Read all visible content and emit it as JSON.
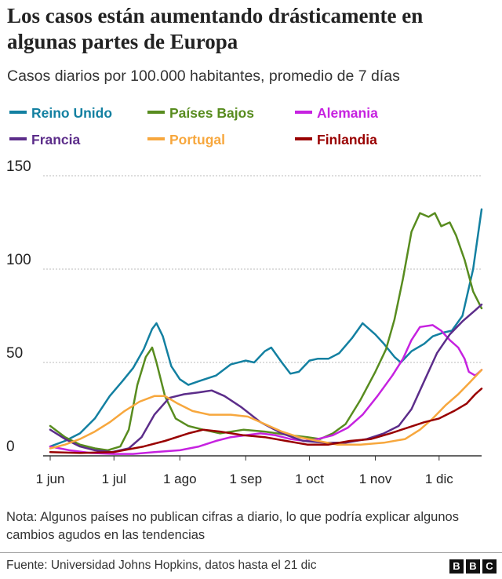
{
  "title": "Los casos están aumentando drásticamente en algunas partes de Europa",
  "subtitle": "Casos diarios por 100.000 habitantes, promedio de 7 días",
  "note": "Nota: Algunos países no publican cifras a diario, lo que podría explicar algunos cambios agudos en las tendencias",
  "source": "Fuente: Universidad Johns Hopkins, datos hasta el 21 dic",
  "logo": [
    "B",
    "B",
    "C"
  ],
  "chart_data": {
    "type": "line",
    "x_tick_labels": [
      "1 jun",
      "1 jul",
      "1 ago",
      "1 sep",
      "1 oct",
      "1 nov",
      "1 dic"
    ],
    "x_tick_dates": [
      "2021-06-01",
      "2021-07-01",
      "2021-08-01",
      "2021-09-01",
      "2021-10-01",
      "2021-11-01",
      "2021-12-01"
    ],
    "x_range": [
      "2021-06-01",
      "2021-12-21"
    ],
    "y_ticks": [
      "0",
      "50",
      "100",
      "150"
    ],
    "ylim": [
      0,
      150
    ],
    "grid": "horizontal dotted",
    "legend_position": "top",
    "series": [
      {
        "name": "Reino Unido",
        "color": "#1380a1",
        "points": [
          [
            "2021-06-01",
            5
          ],
          [
            "2021-06-08",
            8
          ],
          [
            "2021-06-15",
            12
          ],
          [
            "2021-06-22",
            20
          ],
          [
            "2021-06-29",
            32
          ],
          [
            "2021-07-05",
            40
          ],
          [
            "2021-07-10",
            47
          ],
          [
            "2021-07-15",
            57
          ],
          [
            "2021-07-19",
            68
          ],
          [
            "2021-07-21",
            71
          ],
          [
            "2021-07-24",
            64
          ],
          [
            "2021-07-28",
            48
          ],
          [
            "2021-08-01",
            41
          ],
          [
            "2021-08-05",
            38
          ],
          [
            "2021-08-10",
            40
          ],
          [
            "2021-08-18",
            43
          ],
          [
            "2021-08-25",
            49
          ],
          [
            "2021-09-01",
            51
          ],
          [
            "2021-09-05",
            50
          ],
          [
            "2021-09-10",
            56
          ],
          [
            "2021-09-13",
            58
          ],
          [
            "2021-09-18",
            50
          ],
          [
            "2021-09-22",
            44
          ],
          [
            "2021-09-26",
            45
          ],
          [
            "2021-10-01",
            51
          ],
          [
            "2021-10-05",
            52
          ],
          [
            "2021-10-10",
            52
          ],
          [
            "2021-10-15",
            55
          ],
          [
            "2021-10-21",
            63
          ],
          [
            "2021-10-26",
            71
          ],
          [
            "2021-11-01",
            65
          ],
          [
            "2021-11-05",
            60
          ],
          [
            "2021-11-10",
            53
          ],
          [
            "2021-11-13",
            50
          ],
          [
            "2021-11-18",
            56
          ],
          [
            "2021-11-24",
            60
          ],
          [
            "2021-11-28",
            64
          ],
          [
            "2021-12-03",
            66
          ],
          [
            "2021-12-07",
            67
          ],
          [
            "2021-12-12",
            75
          ],
          [
            "2021-12-17",
            100
          ],
          [
            "2021-12-21",
            132
          ]
        ]
      },
      {
        "name": "Países Bajos",
        "color": "#588c1f",
        "points": [
          [
            "2021-06-01",
            16
          ],
          [
            "2021-06-08",
            10
          ],
          [
            "2021-06-15",
            6
          ],
          [
            "2021-06-22",
            4
          ],
          [
            "2021-06-28",
            3
          ],
          [
            "2021-07-04",
            5
          ],
          [
            "2021-07-08",
            14
          ],
          [
            "2021-07-12",
            38
          ],
          [
            "2021-07-16",
            53
          ],
          [
            "2021-07-19",
            58
          ],
          [
            "2021-07-21",
            50
          ],
          [
            "2021-07-25",
            32
          ],
          [
            "2021-07-30",
            20
          ],
          [
            "2021-08-05",
            16
          ],
          [
            "2021-08-12",
            14
          ],
          [
            "2021-08-20",
            12
          ],
          [
            "2021-08-31",
            14
          ],
          [
            "2021-09-10",
            13
          ],
          [
            "2021-09-22",
            11
          ],
          [
            "2021-09-30",
            10
          ],
          [
            "2021-10-06",
            9
          ],
          [
            "2021-10-12",
            12
          ],
          [
            "2021-10-18",
            17
          ],
          [
            "2021-10-25",
            30
          ],
          [
            "2021-11-01",
            45
          ],
          [
            "2021-11-06",
            57
          ],
          [
            "2021-11-10",
            73
          ],
          [
            "2021-11-14",
            95
          ],
          [
            "2021-11-18",
            120
          ],
          [
            "2021-11-22",
            130
          ],
          [
            "2021-11-26",
            128
          ],
          [
            "2021-11-29",
            130
          ],
          [
            "2021-12-02",
            123
          ],
          [
            "2021-12-06",
            125
          ],
          [
            "2021-12-09",
            118
          ],
          [
            "2021-12-13",
            105
          ],
          [
            "2021-12-17",
            88
          ],
          [
            "2021-12-21",
            79
          ]
        ]
      },
      {
        "name": "Alemania",
        "color": "#c622e0",
        "points": [
          [
            "2021-06-01",
            5
          ],
          [
            "2021-06-10",
            3
          ],
          [
            "2021-06-20",
            1.5
          ],
          [
            "2021-07-01",
            1
          ],
          [
            "2021-07-10",
            1
          ],
          [
            "2021-07-20",
            2
          ],
          [
            "2021-08-01",
            3
          ],
          [
            "2021-08-10",
            5
          ],
          [
            "2021-08-18",
            8
          ],
          [
            "2021-08-25",
            10
          ],
          [
            "2021-09-01",
            11
          ],
          [
            "2021-09-08",
            12
          ],
          [
            "2021-09-15",
            11
          ],
          [
            "2021-09-22",
            9
          ],
          [
            "2021-09-29",
            8
          ],
          [
            "2021-10-05",
            9
          ],
          [
            "2021-10-12",
            11
          ],
          [
            "2021-10-19",
            15
          ],
          [
            "2021-10-26",
            22
          ],
          [
            "2021-11-02",
            32
          ],
          [
            "2021-11-09",
            43
          ],
          [
            "2021-11-14",
            52
          ],
          [
            "2021-11-18",
            62
          ],
          [
            "2021-11-22",
            69
          ],
          [
            "2021-11-28",
            70
          ],
          [
            "2021-12-02",
            67
          ],
          [
            "2021-12-06",
            62
          ],
          [
            "2021-12-10",
            58
          ],
          [
            "2021-12-13",
            52
          ],
          [
            "2021-12-15",
            45
          ],
          [
            "2021-12-18",
            43
          ],
          [
            "2021-12-21",
            46
          ]
        ]
      },
      {
        "name": "Francia",
        "color": "#5c2d8a",
        "points": [
          [
            "2021-06-01",
            14
          ],
          [
            "2021-06-08",
            9
          ],
          [
            "2021-06-15",
            5
          ],
          [
            "2021-06-22",
            3
          ],
          [
            "2021-06-30",
            2
          ],
          [
            "2021-07-08",
            4
          ],
          [
            "2021-07-14",
            10
          ],
          [
            "2021-07-20",
            22
          ],
          [
            "2021-07-27",
            31
          ],
          [
            "2021-08-03",
            33
          ],
          [
            "2021-08-10",
            34
          ],
          [
            "2021-08-16",
            35
          ],
          [
            "2021-08-22",
            32
          ],
          [
            "2021-08-30",
            26
          ],
          [
            "2021-09-08",
            18
          ],
          [
            "2021-09-18",
            12
          ],
          [
            "2021-09-28",
            8
          ],
          [
            "2021-10-08",
            7
          ],
          [
            "2021-10-18",
            7
          ],
          [
            "2021-10-28",
            9
          ],
          [
            "2021-11-05",
            12
          ],
          [
            "2021-11-12",
            16
          ],
          [
            "2021-11-18",
            25
          ],
          [
            "2021-11-24",
            40
          ],
          [
            "2021-11-30",
            55
          ],
          [
            "2021-12-06",
            65
          ],
          [
            "2021-12-12",
            72
          ],
          [
            "2021-12-18",
            78
          ],
          [
            "2021-12-21",
            81
          ]
        ]
      },
      {
        "name": "Portugal",
        "color": "#f7a73d",
        "points": [
          [
            "2021-06-01",
            4
          ],
          [
            "2021-06-08",
            6
          ],
          [
            "2021-06-15",
            9
          ],
          [
            "2021-06-22",
            13
          ],
          [
            "2021-06-29",
            18
          ],
          [
            "2021-07-06",
            24
          ],
          [
            "2021-07-13",
            29
          ],
          [
            "2021-07-20",
            32
          ],
          [
            "2021-07-25",
            32
          ],
          [
            "2021-07-31",
            28
          ],
          [
            "2021-08-07",
            24
          ],
          [
            "2021-08-15",
            22
          ],
          [
            "2021-08-25",
            22
          ],
          [
            "2021-09-02",
            21
          ],
          [
            "2021-09-10",
            17
          ],
          [
            "2021-09-18",
            13
          ],
          [
            "2021-09-26",
            10
          ],
          [
            "2021-10-05",
            8
          ],
          [
            "2021-10-14",
            6
          ],
          [
            "2021-10-25",
            6
          ],
          [
            "2021-11-05",
            7
          ],
          [
            "2021-11-15",
            9
          ],
          [
            "2021-11-22",
            14
          ],
          [
            "2021-11-28",
            20
          ],
          [
            "2021-12-04",
            27
          ],
          [
            "2021-12-10",
            33
          ],
          [
            "2021-12-16",
            40
          ],
          [
            "2021-12-21",
            46
          ]
        ]
      },
      {
        "name": "Finlandia",
        "color": "#990000",
        "points": [
          [
            "2021-06-01",
            2
          ],
          [
            "2021-06-15",
            1.5
          ],
          [
            "2021-07-01",
            2
          ],
          [
            "2021-07-15",
            5
          ],
          [
            "2021-07-25",
            8
          ],
          [
            "2021-08-05",
            12
          ],
          [
            "2021-08-12",
            14
          ],
          [
            "2021-08-20",
            13
          ],
          [
            "2021-08-31",
            11
          ],
          [
            "2021-09-10",
            10
          ],
          [
            "2021-09-20",
            8
          ],
          [
            "2021-09-30",
            6
          ],
          [
            "2021-10-10",
            6
          ],
          [
            "2021-10-20",
            8
          ],
          [
            "2021-10-30",
            9
          ],
          [
            "2021-11-08",
            12
          ],
          [
            "2021-11-16",
            15
          ],
          [
            "2021-11-24",
            18
          ],
          [
            "2021-12-01",
            20
          ],
          [
            "2021-12-08",
            24
          ],
          [
            "2021-12-14",
            28
          ],
          [
            "2021-12-18",
            33
          ],
          [
            "2021-12-21",
            36
          ]
        ]
      }
    ]
  }
}
